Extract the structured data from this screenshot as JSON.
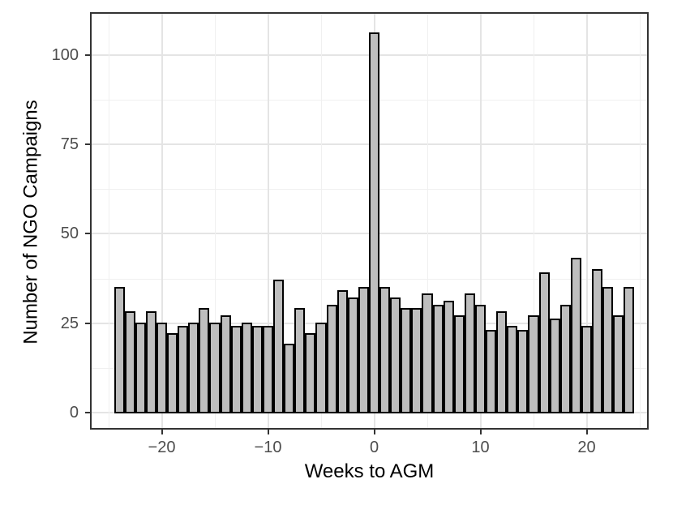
{
  "chart_data": {
    "type": "bar",
    "subtype": "histogram",
    "title": "",
    "xlabel": "Weeks to AGM",
    "ylabel": "Number of NGO Campaigns",
    "x": [
      -24,
      -23,
      -22,
      -21,
      -20,
      -19,
      -18,
      -17,
      -16,
      -15,
      -14,
      -13,
      -12,
      -11,
      -10,
      -9,
      -8,
      -7,
      -6,
      -5,
      -4,
      -3,
      -2,
      -1,
      0,
      1,
      2,
      3,
      4,
      5,
      6,
      7,
      8,
      9,
      10,
      11,
      12,
      13,
      14,
      15,
      16,
      17,
      18,
      19,
      20,
      21,
      22,
      23,
      24
    ],
    "values": [
      35,
      28,
      25,
      28,
      25,
      22,
      24,
      25,
      29,
      25,
      27,
      24,
      25,
      24,
      24,
      37,
      19,
      29,
      22,
      25,
      30,
      34,
      32,
      35,
      106,
      35,
      32,
      29,
      29,
      33,
      30,
      31,
      27,
      33,
      30,
      23,
      28,
      24,
      23,
      27,
      39,
      26,
      30,
      43,
      24,
      40,
      35,
      27,
      35
    ],
    "x_tick_values": [
      -20,
      -10,
      0,
      10,
      20
    ],
    "x_tick_labels": [
      "−20",
      "−10",
      "0",
      "10",
      "20"
    ],
    "y_tick_values": [
      0,
      25,
      50,
      75,
      100
    ],
    "y_tick_labels": [
      "0",
      "25",
      "50",
      "75",
      "100"
    ],
    "x_minor_gridlines": [
      -25,
      -15,
      -5,
      5,
      15,
      25
    ],
    "y_minor_gridlines": [
      12.5,
      37.5,
      62.5,
      87.5
    ],
    "xlim": [
      -27,
      27
    ],
    "ylim": [
      0,
      112
    ],
    "grid": true,
    "legend": false,
    "bin_width_weeks": 1,
    "peak_week": 0,
    "peak_value": 106,
    "colors": {
      "bar_fill": "#bebebe",
      "bar_stroke": "#000000",
      "grid_major": "#e4e4e4",
      "grid_minor": "#f0f0f0",
      "axis_text": "#4d4d4d",
      "axis_title": "#000000",
      "panel_border": "#333333",
      "background": "#ffffff"
    }
  }
}
